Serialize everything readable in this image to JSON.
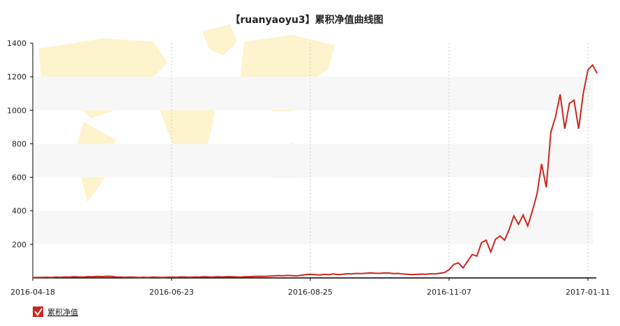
{
  "chart_data": {
    "type": "line",
    "title": "【ruanyaoyu3】累积净值曲线图",
    "categories": [
      "2016-04-18",
      null,
      null,
      null,
      null,
      null,
      null,
      null,
      null,
      null,
      null,
      null,
      null,
      null,
      null,
      null,
      null,
      null,
      null,
      null,
      null,
      null,
      null,
      null,
      null,
      null,
      null,
      null,
      null,
      null,
      "2016-06-23",
      null,
      null,
      null,
      null,
      null,
      null,
      null,
      null,
      null,
      null,
      null,
      null,
      null,
      null,
      null,
      null,
      null,
      null,
      null,
      null,
      null,
      null,
      null,
      null,
      null,
      null,
      null,
      null,
      null,
      "2016-08-25",
      null,
      null,
      null,
      null,
      null,
      null,
      null,
      null,
      null,
      null,
      null,
      null,
      null,
      null,
      null,
      null,
      null,
      null,
      null,
      null,
      null,
      null,
      null,
      null,
      null,
      null,
      null,
      null,
      null,
      "2016-11-07",
      null,
      null,
      null,
      null,
      null,
      null,
      null,
      null,
      null,
      null,
      null,
      null,
      null,
      null,
      null,
      null,
      null,
      null,
      null,
      null,
      null,
      null,
      null,
      null,
      null,
      null,
      null,
      null,
      null,
      "2017-01-11",
      null,
      null
    ],
    "series": [
      {
        "name": "累积净值",
        "color": "#c8281e",
        "values": [
          2,
          3,
          3,
          4,
          3,
          5,
          4,
          6,
          5,
          7,
          6,
          5,
          8,
          7,
          9,
          8,
          10,
          9,
          6,
          5,
          4,
          5,
          4,
          3,
          4,
          3,
          5,
          4,
          3,
          4,
          5,
          4,
          6,
          5,
          4,
          6,
          5,
          7,
          6,
          5,
          7,
          6,
          8,
          7,
          6,
          5,
          7,
          8,
          9,
          10,
          9,
          11,
          12,
          14,
          13,
          15,
          14,
          12,
          16,
          20,
          22,
          20,
          18,
          21,
          19,
          24,
          20,
          22,
          25,
          24,
          27,
          26,
          28,
          30,
          28,
          27,
          30,
          29,
          26,
          27,
          24,
          22,
          20,
          21,
          23,
          22,
          25,
          24,
          28,
          32,
          50,
          80,
          90,
          60,
          100,
          140,
          130,
          210,
          225,
          155,
          230,
          250,
          225,
          290,
          370,
          320,
          375,
          310,
          400,
          500,
          680,
          540,
          870,
          960,
          1095,
          890,
          1040,
          1060,
          890,
          1100,
          1240,
          1270,
          1220
        ]
      }
    ],
    "ylim": [
      0,
      1400
    ],
    "yticks": [
      200,
      400,
      600,
      800,
      1000,
      1200,
      1400
    ],
    "grid": true
  }
}
